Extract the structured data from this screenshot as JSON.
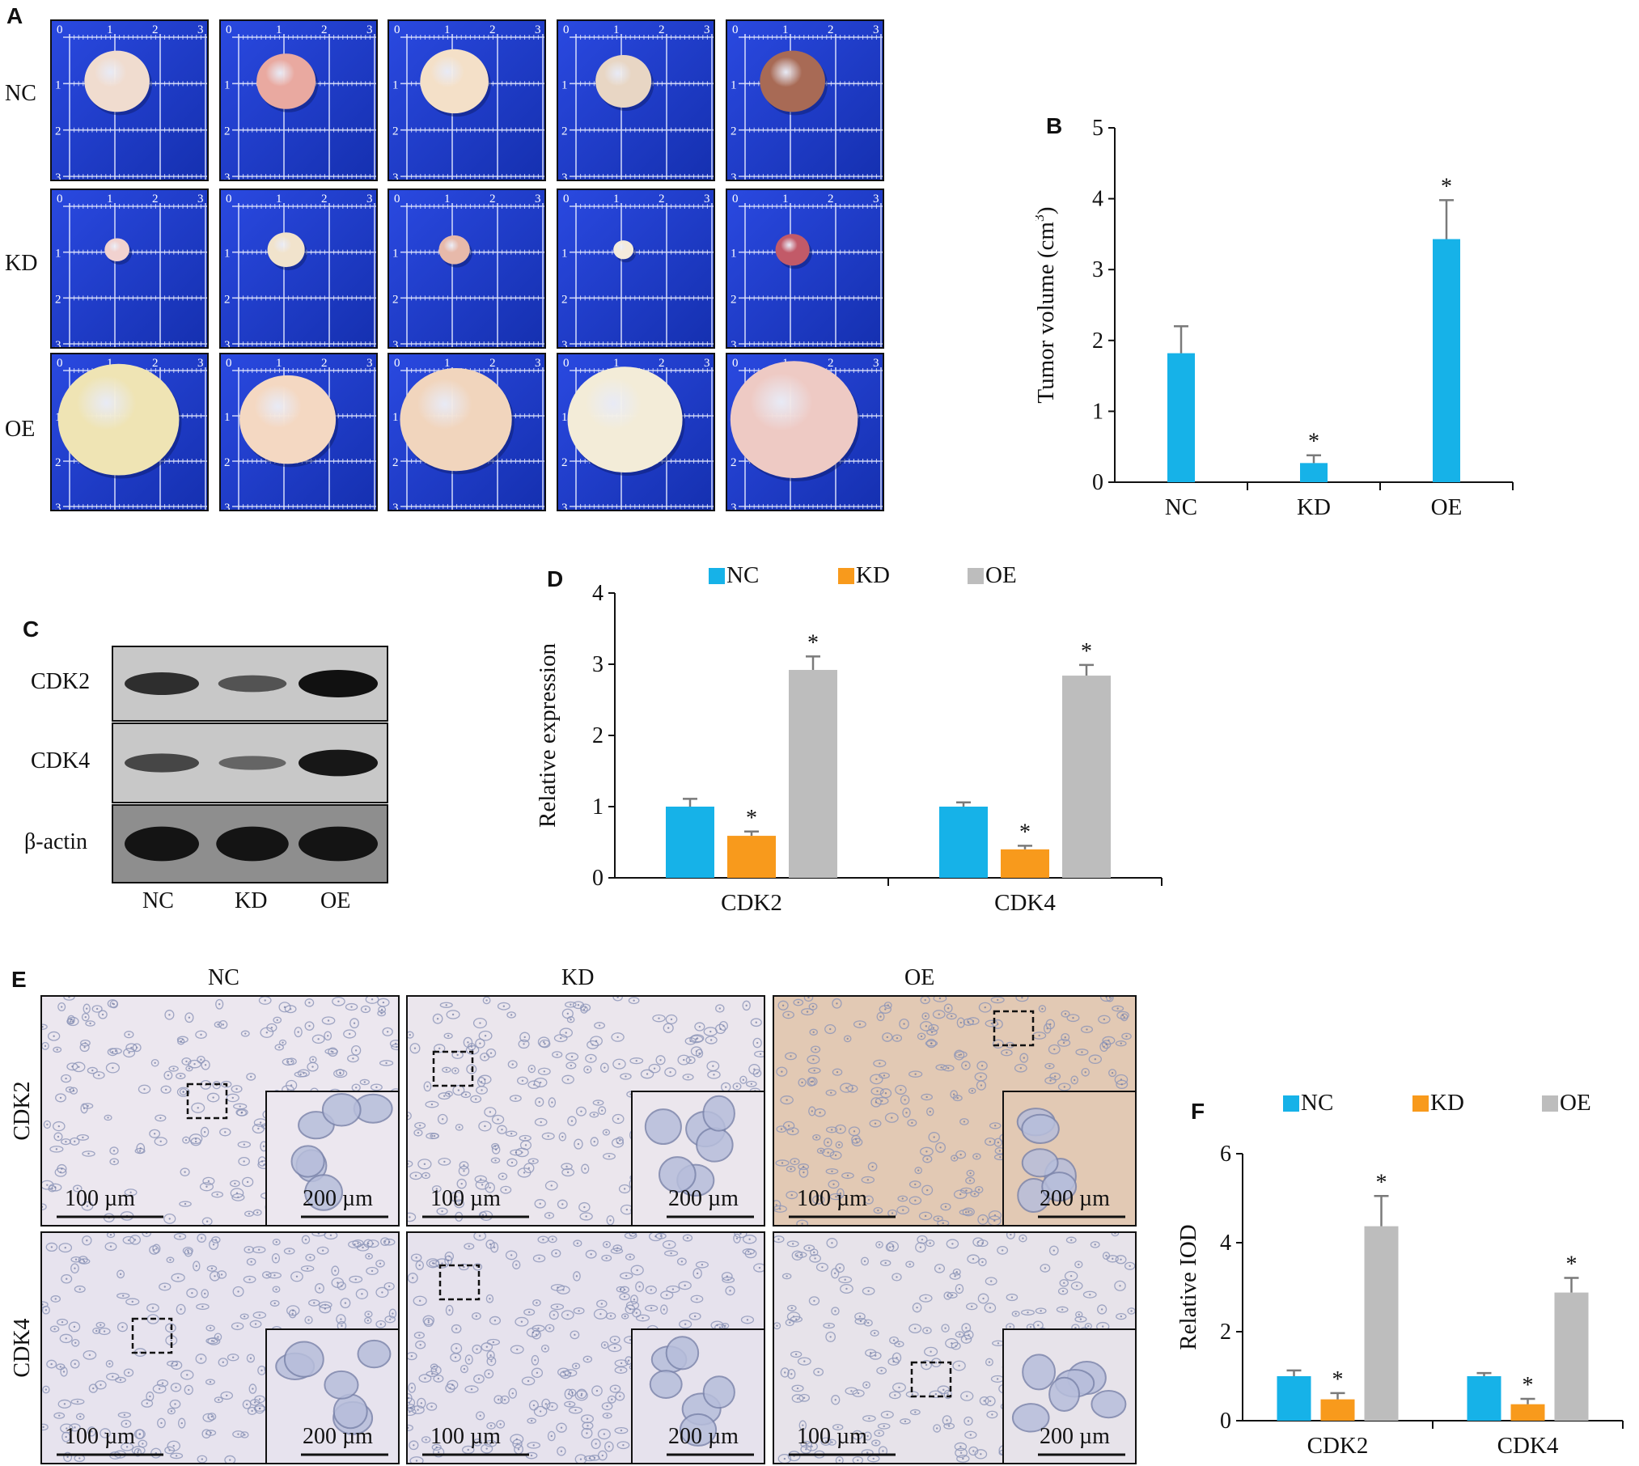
{
  "panels": {
    "a": "A",
    "b": "B",
    "c": "C",
    "d": "D",
    "e": "E",
    "f": "F"
  },
  "panel_a": {
    "rows": [
      "NC",
      "KD",
      "OE"
    ],
    "ruler_ticks": [
      "0",
      "1",
      "2",
      "3"
    ],
    "tumor_colors": [
      [
        "#f0dccf",
        "#e9a9a0",
        "#f4e0c8",
        "#e8d6c4",
        "#a86a55"
      ],
      [
        "#f1d2cf",
        "#f1e3cc",
        "#e7b9aa",
        "#f4ebdc",
        "#c25a68"
      ],
      [
        "#efe4b4",
        "#f4d8c2",
        "#f1d5bd",
        "#f3ecd8",
        "#eecac4"
      ]
    ],
    "tumor_sizes": [
      [
        0.42,
        0.38,
        0.44,
        0.36,
        0.42
      ],
      [
        0.16,
        0.24,
        0.2,
        0.13,
        0.22
      ],
      [
        0.78,
        0.62,
        0.72,
        0.74,
        0.82
      ]
    ]
  },
  "panel_c": {
    "rows": [
      "CDK2",
      "CDK4",
      "β-actin"
    ],
    "lanes": [
      "NC",
      "KD",
      "OE"
    ],
    "band_intensity": [
      [
        0.75,
        0.45,
        1.0
      ],
      [
        0.55,
        0.3,
        0.95
      ],
      [
        0.95,
        0.95,
        0.95
      ]
    ]
  },
  "panel_e": {
    "columns": [
      "NC",
      "KD",
      "OE"
    ],
    "rows": [
      "CDK2",
      "CDK4"
    ],
    "scale_main": "100 µm",
    "scale_inset": "200 µm",
    "bg_colors": [
      [
        "#ece7ef",
        "#ebe6ed",
        "#e2c9b4"
      ],
      [
        "#e7e3ee",
        "#e6e2ed",
        "#e7e3ea"
      ]
    ]
  },
  "colors": {
    "nc": "#16b2e8",
    "kd": "#f89a1c",
    "oe": "#bdbdbd",
    "err": "#7a7a7a"
  },
  "chart_data": [
    {
      "id": "B",
      "type": "bar",
      "categories": [
        "NC",
        "KD",
        "OE"
      ],
      "values": [
        1.82,
        0.27,
        3.43
      ],
      "errors": [
        0.38,
        0.11,
        0.55
      ],
      "significance": [
        "",
        "*",
        "*"
      ],
      "ylabel": "Tumor volume (cm",
      "ylabel_sup": "3",
      "ylabel_end": ")",
      "ylim": [
        0,
        5
      ],
      "yticks": [
        0,
        1,
        2,
        3,
        4,
        5
      ]
    },
    {
      "id": "D",
      "type": "bar",
      "categories": [
        "CDK2",
        "CDK4"
      ],
      "series": [
        {
          "name": "NC",
          "values": [
            1.0,
            1.0
          ],
          "errors": [
            0.11,
            0.06
          ],
          "significance": [
            "",
            ""
          ]
        },
        {
          "name": "KD",
          "values": [
            0.59,
            0.4
          ],
          "errors": [
            0.06,
            0.05
          ],
          "significance": [
            "*",
            "*"
          ]
        },
        {
          "name": "OE",
          "values": [
            2.92,
            2.84
          ],
          "errors": [
            0.19,
            0.15
          ],
          "significance": [
            "*",
            "*"
          ]
        }
      ],
      "ylabel": "Relative expression",
      "ylim": [
        0,
        4
      ],
      "yticks": [
        0,
        1,
        2,
        3,
        4
      ],
      "legend": "top"
    },
    {
      "id": "F",
      "type": "bar",
      "categories": [
        "CDK2",
        "CDK4"
      ],
      "series": [
        {
          "name": "NC",
          "values": [
            1.0,
            1.0
          ],
          "errors": [
            0.13,
            0.07
          ],
          "significance": [
            "",
            ""
          ]
        },
        {
          "name": "KD",
          "values": [
            0.48,
            0.37
          ],
          "errors": [
            0.14,
            0.12
          ],
          "significance": [
            "*",
            "*"
          ]
        },
        {
          "name": "OE",
          "values": [
            4.37,
            2.88
          ],
          "errors": [
            0.68,
            0.33
          ],
          "significance": [
            "*",
            "*"
          ]
        }
      ],
      "ylabel": "Relative IOD",
      "ylim": [
        0,
        6
      ],
      "yticks": [
        0,
        2,
        4,
        6
      ],
      "legend": "top"
    }
  ]
}
